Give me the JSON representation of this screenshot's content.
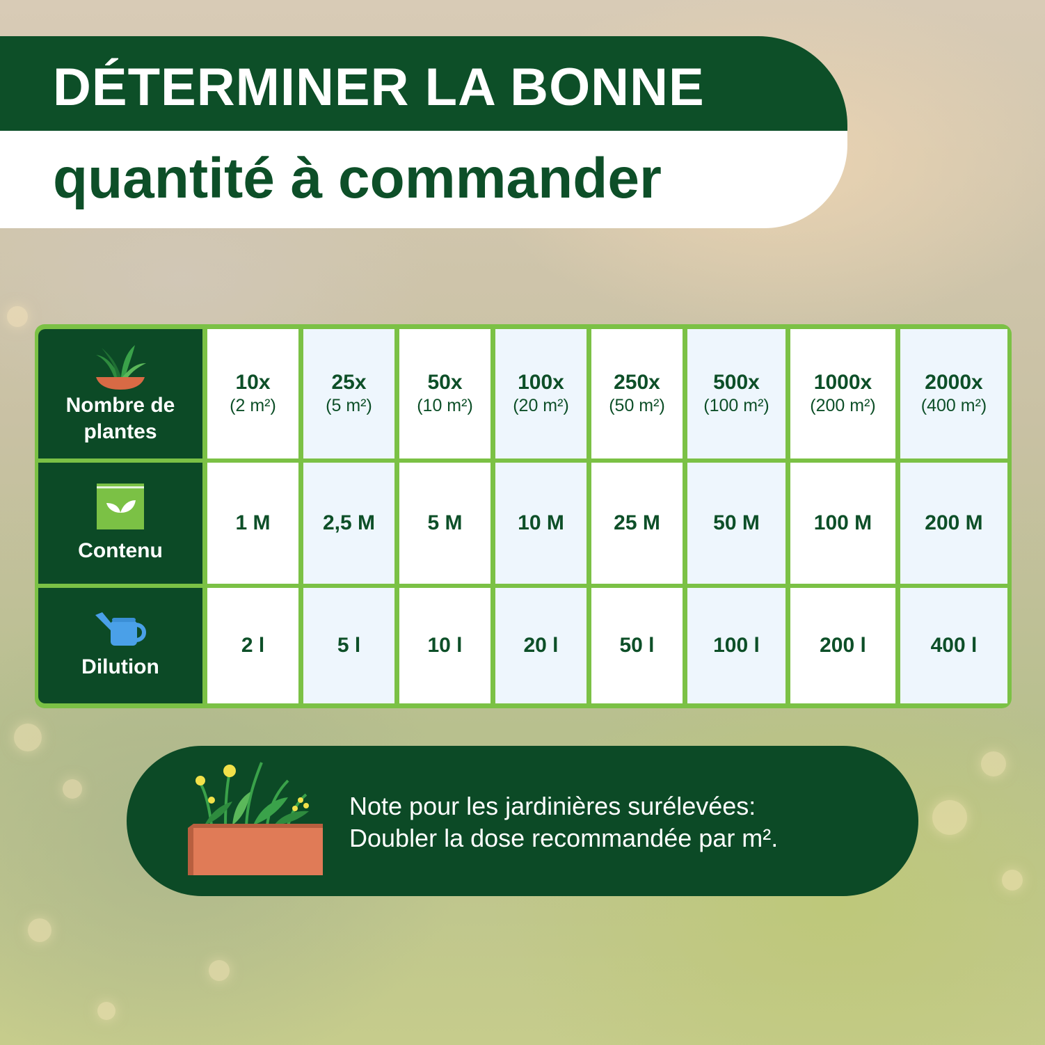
{
  "title": {
    "line1": "DÉTERMINER LA BONNE",
    "line2": "quantité à commander"
  },
  "table": {
    "rows": [
      {
        "label": "Nombre de plantes",
        "icon": "plant-pot-icon"
      },
      {
        "label": "Contenu",
        "icon": "packet-leaf-icon"
      },
      {
        "label": "Dilution",
        "icon": "watering-can-icon"
      }
    ],
    "plants": [
      {
        "count": "10x",
        "area": "(2 m²)"
      },
      {
        "count": "25x",
        "area": "(5 m²)"
      },
      {
        "count": "50x",
        "area": "(10 m²)"
      },
      {
        "count": "100x",
        "area": "(20 m²)"
      },
      {
        "count": "250x",
        "area": "(50 m²)"
      },
      {
        "count": "500x",
        "area": "(100 m²)"
      },
      {
        "count": "1000x",
        "area": "(200 m²)"
      },
      {
        "count": "2000x",
        "area": "(400 m²)"
      }
    ],
    "contenu": [
      "1 M",
      "2,5 M",
      "5 M",
      "10 M",
      "25 M",
      "50 M",
      "100 M",
      "200 M"
    ],
    "dilution": [
      "2 l",
      "5 l",
      "10 l",
      "20 l",
      "50 l",
      "100 l",
      "200 l",
      "400 l"
    ]
  },
  "note": {
    "line1": "Note pour les jardinières surélevées:",
    "line2": "Doubler la dose recommandée par m².",
    "icon": "raised-planter-icon"
  },
  "colors": {
    "dark_green": "#0c4a26",
    "light_green_border": "#7bc145",
    "cell_blue": "#eef6fd",
    "planter": "#e07b57"
  }
}
